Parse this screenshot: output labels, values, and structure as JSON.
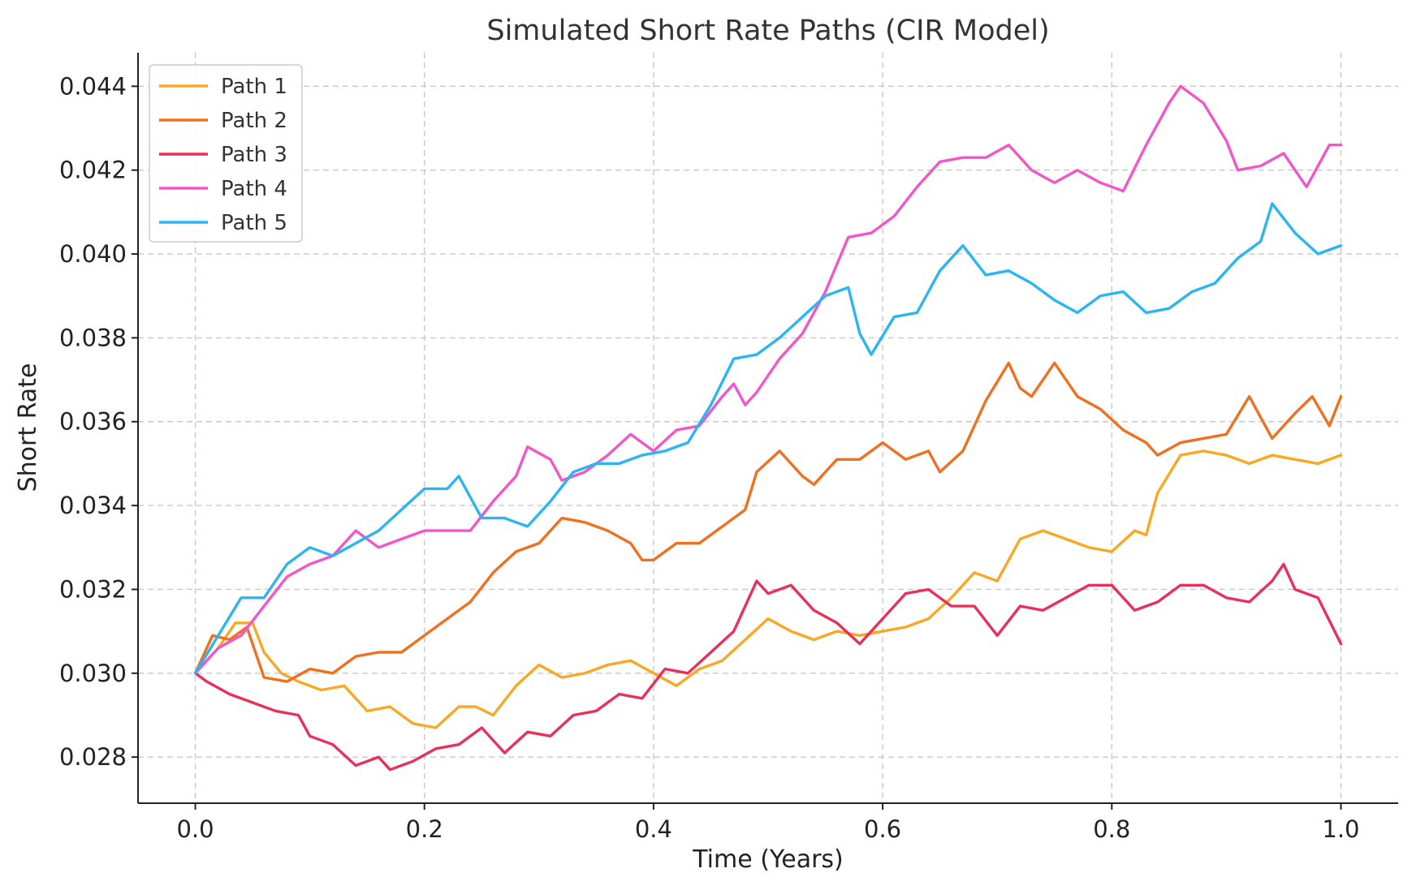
{
  "chart_data": {
    "type": "line",
    "title": "Simulated Short Rate Paths (CIR Model)",
    "xlabel": "Time (Years)",
    "ylabel": "Short Rate",
    "xlim": [
      -0.05,
      1.05
    ],
    "ylim": [
      0.0269,
      0.0448
    ],
    "xticks": [
      0.0,
      0.2,
      0.4,
      0.6,
      0.8,
      1.0
    ],
    "xtick_labels": [
      "0.0",
      "0.2",
      "0.4",
      "0.6",
      "0.8",
      "1.0"
    ],
    "yticks": [
      0.028,
      0.03,
      0.032,
      0.034,
      0.036,
      0.038,
      0.04,
      0.042,
      0.044
    ],
    "ytick_labels": [
      "0.028",
      "0.030",
      "0.032",
      "0.034",
      "0.036",
      "0.038",
      "0.040",
      "0.042",
      "0.044"
    ],
    "grid": true,
    "legend_position": "top-left",
    "series": [
      {
        "name": "Path 1",
        "color": "#F9A824",
        "points": [
          [
            0.0,
            0.03
          ],
          [
            0.02,
            0.0306
          ],
          [
            0.035,
            0.0312
          ],
          [
            0.05,
            0.0312
          ],
          [
            0.06,
            0.0305
          ],
          [
            0.075,
            0.03
          ],
          [
            0.09,
            0.0298
          ],
          [
            0.11,
            0.0296
          ],
          [
            0.13,
            0.0297
          ],
          [
            0.15,
            0.0291
          ],
          [
            0.17,
            0.0292
          ],
          [
            0.19,
            0.0288
          ],
          [
            0.21,
            0.0287
          ],
          [
            0.23,
            0.0292
          ],
          [
            0.245,
            0.0292
          ],
          [
            0.26,
            0.029
          ],
          [
            0.28,
            0.0297
          ],
          [
            0.3,
            0.0302
          ],
          [
            0.32,
            0.0299
          ],
          [
            0.34,
            0.03
          ],
          [
            0.36,
            0.0302
          ],
          [
            0.38,
            0.0303
          ],
          [
            0.4,
            0.03
          ],
          [
            0.42,
            0.0297
          ],
          [
            0.44,
            0.0301
          ],
          [
            0.46,
            0.0303
          ],
          [
            0.48,
            0.0308
          ],
          [
            0.5,
            0.0313
          ],
          [
            0.52,
            0.031
          ],
          [
            0.54,
            0.0308
          ],
          [
            0.56,
            0.031
          ],
          [
            0.58,
            0.0309
          ],
          [
            0.6,
            0.031
          ],
          [
            0.62,
            0.0311
          ],
          [
            0.64,
            0.0313
          ],
          [
            0.66,
            0.0318
          ],
          [
            0.68,
            0.0324
          ],
          [
            0.7,
            0.0322
          ],
          [
            0.72,
            0.0332
          ],
          [
            0.74,
            0.0334
          ],
          [
            0.76,
            0.0332
          ],
          [
            0.78,
            0.033
          ],
          [
            0.8,
            0.0329
          ],
          [
            0.82,
            0.0334
          ],
          [
            0.83,
            0.0333
          ],
          [
            0.84,
            0.0343
          ],
          [
            0.86,
            0.0352
          ],
          [
            0.88,
            0.0353
          ],
          [
            0.9,
            0.0352
          ],
          [
            0.92,
            0.035
          ],
          [
            0.94,
            0.0352
          ],
          [
            0.96,
            0.0351
          ],
          [
            0.98,
            0.035
          ],
          [
            1.0,
            0.0352
          ]
        ]
      },
      {
        "name": "Path 2",
        "color": "#F07020",
        "points": [
          [
            0.0,
            0.03
          ],
          [
            0.015,
            0.0309
          ],
          [
            0.03,
            0.0308
          ],
          [
            0.045,
            0.0311
          ],
          [
            0.06,
            0.0299
          ],
          [
            0.08,
            0.0298
          ],
          [
            0.1,
            0.0301
          ],
          [
            0.12,
            0.03
          ],
          [
            0.14,
            0.0304
          ],
          [
            0.16,
            0.0305
          ],
          [
            0.18,
            0.0305
          ],
          [
            0.2,
            0.0309
          ],
          [
            0.22,
            0.0313
          ],
          [
            0.24,
            0.0317
          ],
          [
            0.26,
            0.0324
          ],
          [
            0.28,
            0.0329
          ],
          [
            0.3,
            0.0331
          ],
          [
            0.32,
            0.0337
          ],
          [
            0.34,
            0.0336
          ],
          [
            0.36,
            0.0334
          ],
          [
            0.38,
            0.0331
          ],
          [
            0.39,
            0.0327
          ],
          [
            0.4,
            0.0327
          ],
          [
            0.42,
            0.0331
          ],
          [
            0.44,
            0.0331
          ],
          [
            0.46,
            0.0335
          ],
          [
            0.48,
            0.0339
          ],
          [
            0.49,
            0.0348
          ],
          [
            0.51,
            0.0353
          ],
          [
            0.53,
            0.0347
          ],
          [
            0.54,
            0.0345
          ],
          [
            0.56,
            0.0351
          ],
          [
            0.58,
            0.0351
          ],
          [
            0.6,
            0.0355
          ],
          [
            0.62,
            0.0351
          ],
          [
            0.64,
            0.0353
          ],
          [
            0.65,
            0.0348
          ],
          [
            0.67,
            0.0353
          ],
          [
            0.69,
            0.0365
          ],
          [
            0.71,
            0.0374
          ],
          [
            0.72,
            0.0368
          ],
          [
            0.73,
            0.0366
          ],
          [
            0.75,
            0.0374
          ],
          [
            0.77,
            0.0366
          ],
          [
            0.79,
            0.0363
          ],
          [
            0.81,
            0.0358
          ],
          [
            0.83,
            0.0355
          ],
          [
            0.84,
            0.0352
          ],
          [
            0.86,
            0.0355
          ],
          [
            0.88,
            0.0356
          ],
          [
            0.9,
            0.0357
          ],
          [
            0.92,
            0.0366
          ],
          [
            0.94,
            0.0356
          ],
          [
            0.96,
            0.0362
          ],
          [
            0.975,
            0.0366
          ],
          [
            0.99,
            0.0359
          ],
          [
            1.0,
            0.0366
          ]
        ]
      },
      {
        "name": "Path 3",
        "color": "#E8315A",
        "points": [
          [
            0.0,
            0.03
          ],
          [
            0.01,
            0.0298
          ],
          [
            0.03,
            0.0295
          ],
          [
            0.05,
            0.0293
          ],
          [
            0.07,
            0.0291
          ],
          [
            0.09,
            0.029
          ],
          [
            0.1,
            0.0285
          ],
          [
            0.12,
            0.0283
          ],
          [
            0.14,
            0.0278
          ],
          [
            0.16,
            0.028
          ],
          [
            0.17,
            0.0277
          ],
          [
            0.19,
            0.0279
          ],
          [
            0.21,
            0.0282
          ],
          [
            0.23,
            0.0283
          ],
          [
            0.25,
            0.0287
          ],
          [
            0.27,
            0.0281
          ],
          [
            0.29,
            0.0286
          ],
          [
            0.31,
            0.0285
          ],
          [
            0.33,
            0.029
          ],
          [
            0.35,
            0.0291
          ],
          [
            0.37,
            0.0295
          ],
          [
            0.39,
            0.0294
          ],
          [
            0.41,
            0.0301
          ],
          [
            0.43,
            0.03
          ],
          [
            0.45,
            0.0305
          ],
          [
            0.47,
            0.031
          ],
          [
            0.49,
            0.0322
          ],
          [
            0.5,
            0.0319
          ],
          [
            0.52,
            0.0321
          ],
          [
            0.54,
            0.0315
          ],
          [
            0.56,
            0.0312
          ],
          [
            0.58,
            0.0307
          ],
          [
            0.6,
            0.0313
          ],
          [
            0.62,
            0.0319
          ],
          [
            0.64,
            0.032
          ],
          [
            0.66,
            0.0316
          ],
          [
            0.68,
            0.0316
          ],
          [
            0.7,
            0.0309
          ],
          [
            0.72,
            0.0316
          ],
          [
            0.74,
            0.0315
          ],
          [
            0.76,
            0.0318
          ],
          [
            0.78,
            0.0321
          ],
          [
            0.8,
            0.0321
          ],
          [
            0.82,
            0.0315
          ],
          [
            0.84,
            0.0317
          ],
          [
            0.86,
            0.0321
          ],
          [
            0.88,
            0.0321
          ],
          [
            0.9,
            0.0318
          ],
          [
            0.92,
            0.0317
          ],
          [
            0.94,
            0.0322
          ],
          [
            0.95,
            0.0326
          ],
          [
            0.96,
            0.032
          ],
          [
            0.98,
            0.0318
          ],
          [
            1.0,
            0.0307
          ]
        ]
      },
      {
        "name": "Path 4",
        "color": "#F256C8",
        "points": [
          [
            0.0,
            0.03
          ],
          [
            0.02,
            0.0306
          ],
          [
            0.04,
            0.0309
          ],
          [
            0.06,
            0.0316
          ],
          [
            0.08,
            0.0323
          ],
          [
            0.1,
            0.0326
          ],
          [
            0.12,
            0.0328
          ],
          [
            0.14,
            0.0334
          ],
          [
            0.16,
            0.033
          ],
          [
            0.18,
            0.0332
          ],
          [
            0.2,
            0.0334
          ],
          [
            0.22,
            0.0334
          ],
          [
            0.24,
            0.0334
          ],
          [
            0.26,
            0.0341
          ],
          [
            0.28,
            0.0347
          ],
          [
            0.29,
            0.0354
          ],
          [
            0.31,
            0.0351
          ],
          [
            0.32,
            0.0346
          ],
          [
            0.34,
            0.0348
          ],
          [
            0.36,
            0.0352
          ],
          [
            0.38,
            0.0357
          ],
          [
            0.4,
            0.0353
          ],
          [
            0.42,
            0.0358
          ],
          [
            0.44,
            0.0359
          ],
          [
            0.46,
            0.0366
          ],
          [
            0.47,
            0.0369
          ],
          [
            0.48,
            0.0364
          ],
          [
            0.49,
            0.0367
          ],
          [
            0.51,
            0.0375
          ],
          [
            0.53,
            0.0381
          ],
          [
            0.55,
            0.0391
          ],
          [
            0.57,
            0.0404
          ],
          [
            0.59,
            0.0405
          ],
          [
            0.61,
            0.0409
          ],
          [
            0.63,
            0.0416
          ],
          [
            0.65,
            0.0422
          ],
          [
            0.67,
            0.0423
          ],
          [
            0.69,
            0.0423
          ],
          [
            0.71,
            0.0426
          ],
          [
            0.73,
            0.042
          ],
          [
            0.75,
            0.0417
          ],
          [
            0.77,
            0.042
          ],
          [
            0.79,
            0.0417
          ],
          [
            0.81,
            0.0415
          ],
          [
            0.83,
            0.0426
          ],
          [
            0.85,
            0.0436
          ],
          [
            0.86,
            0.044
          ],
          [
            0.88,
            0.0436
          ],
          [
            0.9,
            0.0427
          ],
          [
            0.91,
            0.042
          ],
          [
            0.93,
            0.0421
          ],
          [
            0.95,
            0.0424
          ],
          [
            0.97,
            0.0416
          ],
          [
            0.99,
            0.0426
          ],
          [
            1.0,
            0.0426
          ]
        ]
      },
      {
        "name": "Path 5",
        "color": "#2BB5F2",
        "points": [
          [
            0.0,
            0.03
          ],
          [
            0.02,
            0.0309
          ],
          [
            0.04,
            0.0318
          ],
          [
            0.06,
            0.0318
          ],
          [
            0.08,
            0.0326
          ],
          [
            0.1,
            0.033
          ],
          [
            0.12,
            0.0328
          ],
          [
            0.14,
            0.0331
          ],
          [
            0.16,
            0.0334
          ],
          [
            0.18,
            0.0339
          ],
          [
            0.2,
            0.0344
          ],
          [
            0.22,
            0.0344
          ],
          [
            0.23,
            0.0347
          ],
          [
            0.25,
            0.0337
          ],
          [
            0.27,
            0.0337
          ],
          [
            0.29,
            0.0335
          ],
          [
            0.31,
            0.0341
          ],
          [
            0.33,
            0.0348
          ],
          [
            0.35,
            0.035
          ],
          [
            0.37,
            0.035
          ],
          [
            0.39,
            0.0352
          ],
          [
            0.41,
            0.0353
          ],
          [
            0.43,
            0.0355
          ],
          [
            0.45,
            0.0364
          ],
          [
            0.47,
            0.0375
          ],
          [
            0.49,
            0.0376
          ],
          [
            0.51,
            0.038
          ],
          [
            0.53,
            0.0385
          ],
          [
            0.55,
            0.039
          ],
          [
            0.57,
            0.0392
          ],
          [
            0.58,
            0.0381
          ],
          [
            0.59,
            0.0376
          ],
          [
            0.61,
            0.0385
          ],
          [
            0.63,
            0.0386
          ],
          [
            0.65,
            0.0396
          ],
          [
            0.67,
            0.0402
          ],
          [
            0.69,
            0.0395
          ],
          [
            0.71,
            0.0396
          ],
          [
            0.73,
            0.0393
          ],
          [
            0.75,
            0.0389
          ],
          [
            0.77,
            0.0386
          ],
          [
            0.79,
            0.039
          ],
          [
            0.81,
            0.0391
          ],
          [
            0.83,
            0.0386
          ],
          [
            0.85,
            0.0387
          ],
          [
            0.87,
            0.0391
          ],
          [
            0.89,
            0.0393
          ],
          [
            0.91,
            0.0399
          ],
          [
            0.93,
            0.0403
          ],
          [
            0.94,
            0.0412
          ],
          [
            0.96,
            0.0405
          ],
          [
            0.98,
            0.04
          ],
          [
            1.0,
            0.0402
          ]
        ]
      }
    ]
  }
}
